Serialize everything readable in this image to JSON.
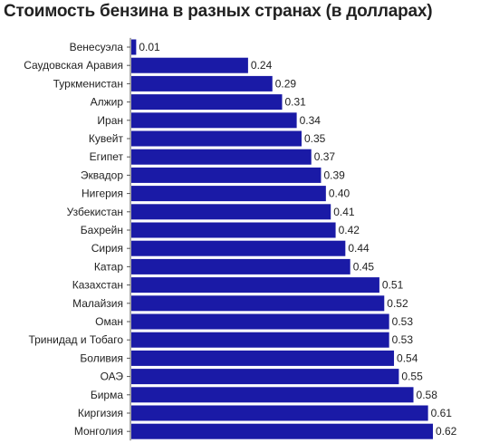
{
  "title": "Стоимость бензина в разных странах (в долларах)",
  "chart_data": {
    "type": "bar",
    "orientation": "horizontal",
    "title": "Стоимость бензина в разных странах (в долларах)",
    "xlabel": "",
    "ylabel": "",
    "xlim": [
      0,
      0.62
    ],
    "bar_color": "#1a1aa6",
    "grid": false,
    "legend": "none",
    "categories": [
      "Венесуэла",
      "Саудовская Аравия",
      "Туркменистан",
      "Алжир",
      "Иран",
      "Кувейт",
      "Египет",
      "Эквадор",
      "Нигерия",
      "Узбекистан",
      "Бахрейн",
      "Сирия",
      "Катар",
      "Казахстан",
      "Малайзия",
      "Оман",
      "Тринидад и Тобаго",
      "Боливия",
      "ОАЭ",
      "Бирма",
      "Киргизия",
      "Монголия"
    ],
    "values": [
      0.01,
      0.24,
      0.29,
      0.31,
      0.34,
      0.35,
      0.37,
      0.39,
      0.4,
      0.41,
      0.42,
      0.44,
      0.45,
      0.51,
      0.52,
      0.53,
      0.53,
      0.54,
      0.55,
      0.58,
      0.61,
      0.62
    ],
    "value_labels": [
      "0.01",
      "0.24",
      "0.29",
      "0.31",
      "0.34",
      "0.35",
      "0.37",
      "0.39",
      "0.40",
      "0.41",
      "0.42",
      "0.44",
      "0.45",
      "0.51",
      "0.52",
      "0.53",
      "0.53",
      "0.54",
      "0.55",
      "0.58",
      "0.61",
      "0.62"
    ]
  }
}
